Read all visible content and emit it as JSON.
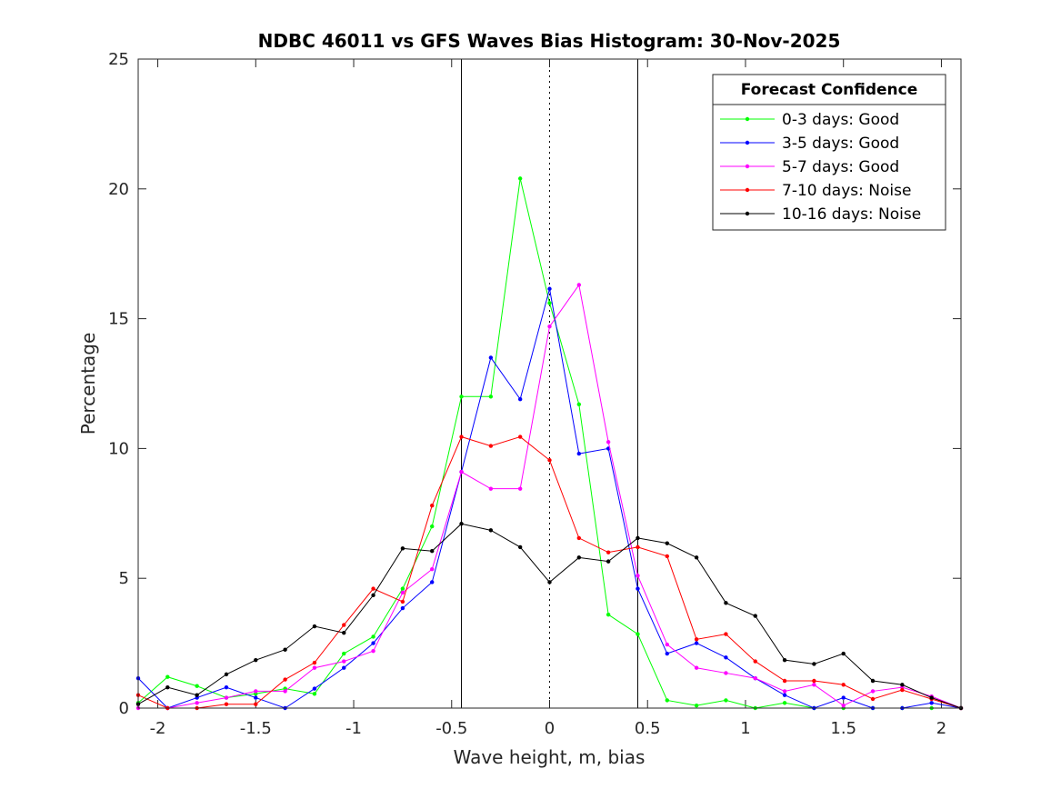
{
  "chart_data": {
    "type": "line",
    "title": "NDBC 46011 vs GFS Waves Bias Histogram: 30-Nov-2025",
    "xlabel": "Wave height, m, bias",
    "ylabel": "Percentage",
    "xlim": [
      -2.1,
      2.1
    ],
    "ylim": [
      0,
      25
    ],
    "xticks": [
      -2,
      -1.5,
      -1,
      -0.5,
      0,
      0.5,
      1,
      1.5,
      2
    ],
    "xtick_labels": [
      "-2",
      "-1.5",
      "-1",
      "-0.5",
      "0",
      "0.5",
      "1",
      "1.5",
      "2"
    ],
    "yticks": [
      0,
      5,
      10,
      15,
      20,
      25
    ],
    "ytick_labels": [
      "0",
      "5",
      "10",
      "15",
      "20",
      "25"
    ],
    "grid": false,
    "vertical_lines": [
      {
        "x": -0.45,
        "style": "solid"
      },
      {
        "x": 0,
        "style": "dotted"
      },
      {
        "x": 0.45,
        "style": "solid"
      }
    ],
    "legend": {
      "title": "Forecast Confidence",
      "placement": "top-right"
    },
    "x": [
      -2.1,
      -1.95,
      -1.8,
      -1.65,
      -1.5,
      -1.35,
      -1.2,
      -1.05,
      -0.9,
      -0.75,
      -0.6,
      -0.45,
      -0.3,
      -0.15,
      0,
      0.15,
      0.3,
      0.45,
      0.6,
      0.75,
      0.9,
      1.05,
      1.2,
      1.35,
      1.5,
      1.65,
      1.8,
      1.95,
      2.1
    ],
    "series": [
      {
        "name": "0-3 days: Good",
        "color": "#00ff00",
        "values": [
          0.2,
          1.2,
          0.85,
          0.4,
          0.55,
          0.75,
          0.55,
          2.1,
          2.75,
          4.6,
          7.0,
          12.0,
          12.0,
          20.4,
          15.6,
          11.7,
          3.6,
          2.85,
          0.3,
          0.1,
          0.3,
          0,
          0.2,
          0,
          0,
          0,
          0,
          0,
          0
        ]
      },
      {
        "name": "3-5 days: Good",
        "color": "#0000ff",
        "values": [
          1.15,
          0,
          0.4,
          0.8,
          0.4,
          0,
          0.75,
          1.55,
          2.5,
          3.85,
          4.85,
          9.1,
          13.5,
          11.9,
          16.15,
          9.8,
          10.0,
          4.6,
          2.1,
          2.5,
          1.95,
          1.15,
          0.5,
          0,
          0.4,
          0,
          0,
          0.2,
          0
        ]
      },
      {
        "name": "5-7 days: Good",
        "color": "#ff00ff",
        "values": [
          0,
          0,
          0.2,
          0.4,
          0.65,
          0.65,
          1.55,
          1.8,
          2.2,
          4.45,
          5.35,
          9.1,
          8.45,
          8.45,
          14.7,
          16.3,
          10.25,
          5.1,
          2.45,
          1.55,
          1.35,
          1.15,
          0.65,
          0.9,
          0.1,
          0.65,
          0.8,
          0.45,
          0
        ]
      },
      {
        "name": "7-10 days: Noise",
        "color": "#ff0000",
        "values": [
          0.5,
          0,
          0,
          0.15,
          0.15,
          1.1,
          1.75,
          3.2,
          4.6,
          4.1,
          7.8,
          10.45,
          10.1,
          10.45,
          9.55,
          6.55,
          6.0,
          6.2,
          5.85,
          2.65,
          2.85,
          1.8,
          1.05,
          1.05,
          0.9,
          0.35,
          0.7,
          0.35,
          0
        ]
      },
      {
        "name": "10-16 days: Noise",
        "color": "#000000",
        "values": [
          0.15,
          0.8,
          0.5,
          1.3,
          1.85,
          2.25,
          3.15,
          2.9,
          4.35,
          6.15,
          6.05,
          7.1,
          6.85,
          6.2,
          4.85,
          5.8,
          5.65,
          6.55,
          6.35,
          5.8,
          4.05,
          3.55,
          1.85,
          1.7,
          2.1,
          1.05,
          0.9,
          0.4,
          0
        ]
      }
    ]
  }
}
